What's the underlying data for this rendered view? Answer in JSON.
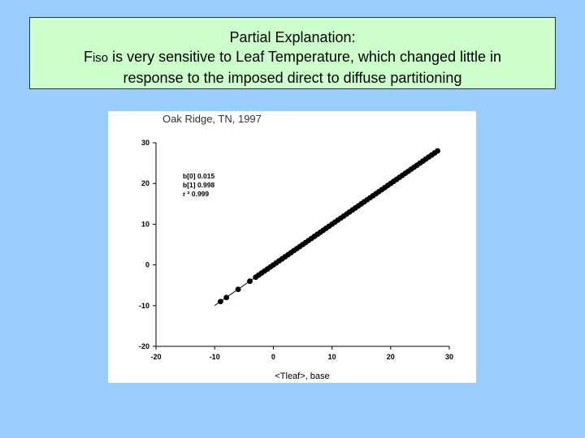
{
  "slide": {
    "heading": "Partial Explanation:",
    "line2_prefix": "F",
    "line2_sub": "iso",
    "line2_rest": " is very sensitive to Leaf Temperature, which changed little in",
    "line3": "response to the imposed direct to diffuse partitioning"
  },
  "chart_data": {
    "type": "scatter",
    "title": "Oak Ridge, TN, 1997",
    "xlabel": "<Tleaf>, base",
    "ylabel": "",
    "xlim": [
      -20,
      30
    ],
    "ylim": [
      -20,
      30
    ],
    "xticks": [
      -20,
      -10,
      0,
      10,
      20,
      30
    ],
    "yticks": [
      -20,
      -10,
      0,
      10,
      20,
      30
    ],
    "grid": false,
    "stats": [
      "b[0] 0.015",
      "b[1] 0.998",
      "r ²   0.999"
    ],
    "fit_line": {
      "intercept": 0.015,
      "slope": 0.998,
      "x_range": [
        -10,
        28
      ]
    },
    "series": [
      {
        "color": "#000000",
        "x": [
          -9,
          -8,
          -6,
          -4,
          -3,
          -2.5,
          -2,
          -1.5,
          -1,
          -0.5,
          0,
          0.5,
          1,
          1.5,
          2,
          2.5,
          3,
          3.5,
          4,
          4.5,
          5,
          5.5,
          6,
          6.5,
          7,
          7.5,
          8,
          8.5,
          9,
          9.5,
          10,
          10.5,
          11,
          11.5,
          12,
          12.5,
          13,
          13.5,
          14,
          14.5,
          15,
          15.5,
          16,
          16.5,
          17,
          17.5,
          18,
          18.5,
          19,
          19.5,
          20,
          20.5,
          21,
          21.5,
          22,
          22.5,
          23,
          23.5,
          24,
          24.5,
          25,
          25.5,
          26,
          26.5,
          27,
          27.5,
          28
        ],
        "y": [
          -9,
          -8,
          -6,
          -4,
          -3,
          -2.5,
          -2,
          -1.5,
          -1,
          -0.5,
          0,
          0.5,
          1,
          1.5,
          2,
          2.5,
          3,
          3.5,
          4,
          4.5,
          5,
          5.5,
          6,
          6.5,
          7,
          7.5,
          8,
          8.5,
          9,
          9.5,
          10,
          10.5,
          11,
          11.5,
          12,
          12.5,
          13,
          13.5,
          14,
          14.5,
          15,
          15.5,
          16,
          16.5,
          17,
          17.5,
          18,
          18.5,
          19,
          19.5,
          20,
          20.5,
          21,
          21.5,
          22,
          22.5,
          23,
          23.5,
          24,
          24.5,
          25,
          25.5,
          26,
          26.5,
          27,
          27.5,
          28
        ]
      }
    ]
  }
}
